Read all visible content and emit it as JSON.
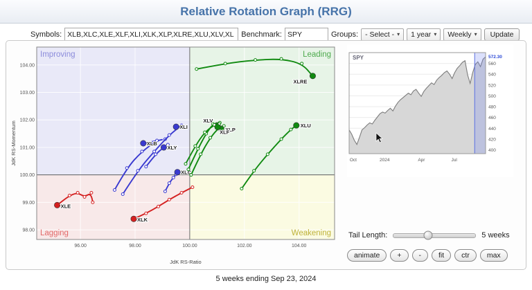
{
  "header": {
    "title": "Relative Rotation Graph (RRG)"
  },
  "toolbar": {
    "symbols_label": "Symbols:",
    "symbols_value": "XLB,XLC,XLE,XLF,XLI,XLK,XLP,XLRE,XLU,XLV,XL",
    "benchmark_label": "Benchmark:",
    "benchmark_value": "SPY",
    "groups_label": "Groups:",
    "groups_value": "- Select -",
    "period_value": "1 year",
    "frequency_value": "Weekly",
    "update_label": "Update"
  },
  "controls": {
    "tail_length_label": "Tail Length:",
    "tail_length_value": "5 weeks",
    "buttons": [
      "animate",
      "+",
      "-",
      "fit",
      "ctr",
      "max"
    ]
  },
  "footer": {
    "caption": "5 weeks ending Sep 23, 2024"
  },
  "chart_data": [
    {
      "type": "scatter",
      "name": "rrg",
      "xlabel": "JdK RS-Ratio",
      "ylabel": "JdK RS-Momentum",
      "xlim": [
        94.4,
        105.3
      ],
      "ylim": [
        97.65,
        104.65
      ],
      "x_ticks": [
        96,
        98,
        100,
        102,
        104
      ],
      "y_ticks": [
        98,
        99,
        100,
        101,
        102,
        103,
        104
      ],
      "center": [
        100,
        100
      ],
      "quadrants": [
        {
          "name": "Improving",
          "color": "#e9e9f8",
          "label_color": "#8080d8",
          "pos": "top-left"
        },
        {
          "name": "Leading",
          "color": "#e7f4e7",
          "label_color": "#3da23d",
          "pos": "top-right"
        },
        {
          "name": "Lagging",
          "color": "#f8e9e9",
          "label_color": "#e05b5b",
          "pos": "bottom-left"
        },
        {
          "name": "Weakening",
          "color": "#fbfbe2",
          "label_color": "#b9ab2a",
          "pos": "bottom-right"
        }
      ],
      "series": [
        {
          "name": "XLE",
          "color": "#d42020",
          "label_offset": [
            5,
            4
          ],
          "points": [
            [
              96.45,
              99.0
            ],
            [
              96.4,
              99.35
            ],
            [
              96.15,
              99.2
            ],
            [
              95.9,
              99.35
            ],
            [
              95.6,
              99.25
            ],
            [
              95.15,
              98.9
            ]
          ]
        },
        {
          "name": "XLK",
          "color": "#d42020",
          "label_offset": [
            5,
            4
          ],
          "points": [
            [
              100.1,
              99.55
            ],
            [
              99.7,
              99.35
            ],
            [
              99.25,
              99.1
            ],
            [
              98.85,
              98.85
            ],
            [
              98.4,
              98.6
            ],
            [
              97.95,
              98.4
            ]
          ]
        },
        {
          "name": "XLB",
          "color": "#3a3ad0",
          "label_offset": [
            5,
            3
          ],
          "points": [
            [
              97.25,
              99.45
            ],
            [
              97.7,
              100.25
            ],
            [
              98.25,
              100.85
            ],
            [
              98.8,
              101.25
            ],
            [
              99.1,
              101.3
            ],
            [
              98.3,
              101.15
            ]
          ]
        },
        {
          "name": "XLY",
          "color": "#3a3ad0",
          "label_offset": [
            5,
            3
          ],
          "points": [
            [
              98.4,
              100.3
            ],
            [
              98.75,
              100.75
            ],
            [
              99.05,
              101.0
            ],
            [
              99.2,
              101.1
            ],
            [
              99.05,
              101.0
            ]
          ]
        },
        {
          "name": "XLI",
          "color": "#3a3ad0",
          "label_offset": [
            5,
            3
          ],
          "points": [
            [
              97.55,
              99.3
            ],
            [
              98.1,
              100.15
            ],
            [
              98.7,
              100.85
            ],
            [
              99.25,
              101.45
            ],
            [
              99.7,
              101.8
            ],
            [
              99.5,
              101.75
            ]
          ]
        },
        {
          "name": "XLC",
          "color": "#3a3ad0",
          "label_offset": [
            5,
            3
          ],
          "points": [
            [
              99.1,
              99.4
            ],
            [
              99.25,
              99.7
            ],
            [
              99.4,
              99.9
            ],
            [
              99.5,
              100.02
            ],
            [
              99.55,
              100.1
            ]
          ]
        },
        {
          "name": "XLV",
          "color": "#118a11",
          "label_offset": [
            -20,
            -4
          ],
          "points": [
            [
              99.95,
              100.2
            ],
            [
              100.3,
              100.95
            ],
            [
              100.6,
              101.5
            ],
            [
              100.85,
              101.85
            ],
            [
              101.1,
              101.9
            ],
            [
              101.0,
              101.8
            ]
          ]
        },
        {
          "name": "XLP",
          "color": "#118a11",
          "label_offset": [
            6,
            4
          ],
          "points": [
            [
              100.05,
              100.0
            ],
            [
              100.4,
              100.75
            ],
            [
              100.75,
              101.35
            ],
            [
              101.05,
              101.7
            ],
            [
              101.25,
              101.78
            ],
            [
              101.15,
              101.68
            ]
          ]
        },
        {
          "name": "XLF",
          "color": "#118a11",
          "label_offset": [
            3,
            10
          ],
          "points": [
            [
              99.85,
              100.4
            ],
            [
              100.2,
              101.05
            ],
            [
              100.55,
              101.55
            ],
            [
              100.9,
              101.82
            ],
            [
              101.08,
              101.85
            ],
            [
              101.02,
              101.74
            ]
          ]
        },
        {
          "name": "XLU",
          "color": "#118a11",
          "label_offset": [
            6,
            3
          ],
          "points": [
            [
              101.9,
              99.5
            ],
            [
              102.35,
              100.15
            ],
            [
              102.85,
              100.75
            ],
            [
              103.35,
              101.3
            ],
            [
              103.7,
              101.65
            ],
            [
              103.9,
              101.8
            ]
          ]
        },
        {
          "name": "XLRE",
          "color": "#118a11",
          "label_offset": [
            -28,
            11
          ],
          "points": [
            [
              100.25,
              103.85
            ],
            [
              101.3,
              104.05
            ],
            [
              102.4,
              104.18
            ],
            [
              103.35,
              104.22
            ],
            [
              104.1,
              104.05
            ],
            [
              104.5,
              103.6
            ]
          ]
        }
      ]
    },
    {
      "type": "area",
      "name": "spy",
      "title": "SPY",
      "last_price": "572.30",
      "last_price_value": 572.3,
      "ylim": [
        393,
        580
      ],
      "y_ticks": [
        400,
        420,
        440,
        460,
        480,
        500,
        520,
        540,
        560
      ],
      "x_labels": [
        {
          "label": "Oct",
          "pos": 0.03
        },
        {
          "label": "2024",
          "pos": 0.26
        },
        {
          "label": "Apr",
          "pos": 0.53
        },
        {
          "label": "Jul",
          "pos": 0.77
        }
      ],
      "highlight_start": 0.92,
      "values": [
        437,
        429,
        418,
        410,
        423,
        437,
        441,
        446,
        450,
        448,
        455,
        461,
        467,
        470,
        468,
        473,
        477,
        472,
        481,
        488,
        493,
        497,
        501,
        505,
        502,
        509,
        512,
        505,
        499,
        508,
        514,
        519,
        524,
        521,
        529,
        534,
        538,
        543,
        546,
        540,
        532,
        543,
        551,
        556,
        562,
        565,
        539,
        523,
        543,
        558,
        563,
        554,
        568,
        572
      ]
    }
  ]
}
